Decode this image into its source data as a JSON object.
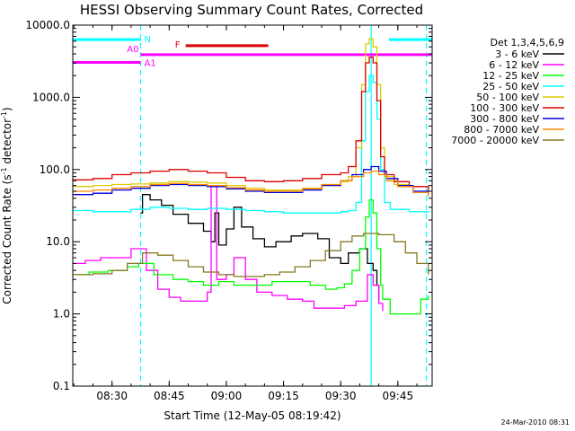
{
  "chart_data": {
    "type": "line",
    "title": "HESSI Observing Summary Count Rates, Corrected",
    "xlabel": "Start Time (12-May-05 08:19:42)",
    "ylabel": "Corrected Count Rate (s⁻¹ detector⁻¹)",
    "ylabel_main": "Corrected Count Rate (s",
    "ylabel_sup1": "-1",
    "ylabel_mid": " detector",
    "ylabel_sup2": "-1",
    "ylabel_end": ")",
    "yscale": "log",
    "ylim": [
      0.1,
      10000
    ],
    "xlim": [
      "08:19:42",
      "09:54:00"
    ],
    "x_ticks": [
      "08:30",
      "08:45",
      "09:00",
      "09:15",
      "09:30",
      "09:45"
    ],
    "y_ticks": [
      "0.1",
      "1.0",
      "10.0",
      "100.0",
      "1000.0",
      "10000.0"
    ],
    "legend_header": "Det 1,3,4,5,6,9",
    "legend_placement": "right",
    "footer": "24-Mar-2010 08:31",
    "flag_bars": [
      {
        "label": "N",
        "color": "#00ffff",
        "level": 6300,
        "segments": [
          [
            "08:19:42",
            "08:37:30"
          ],
          [
            "09:42:40",
            "09:54:00"
          ]
        ]
      },
      {
        "label": "F",
        "color": "#dd0000",
        "level": 5200,
        "segments": [
          [
            "08:49:20",
            "09:11:00"
          ]
        ]
      },
      {
        "label": "A0",
        "color": "#ff00ff",
        "level": 3900,
        "segments": [
          [
            "08:37:30",
            "09:54:00"
          ]
        ]
      },
      {
        "label": "A1",
        "color": "#ff00ff",
        "level": 3050,
        "segments": [
          [
            "08:19:42",
            "08:37:30"
          ]
        ]
      }
    ],
    "vertical_markers": [
      {
        "time": "08:37:30",
        "color": "#00ffff",
        "style": "dashed"
      },
      {
        "time": "09:38:00",
        "color": "#00ffff",
        "style": "solid"
      },
      {
        "time": "09:52:30",
        "color": "#00ffff",
        "style": "dashed"
      }
    ],
    "series": [
      {
        "name": "3 - 6 keV",
        "color": "#000000",
        "points": [
          [
            "08:37:30",
            25
          ],
          [
            "08:38:00",
            45
          ],
          [
            "08:40:00",
            38
          ],
          [
            "08:43:00",
            32
          ],
          [
            "08:46:00",
            24
          ],
          [
            "08:50:00",
            18
          ],
          [
            "08:54:00",
            14
          ],
          [
            "08:56:00",
            10
          ],
          [
            "08:57:00",
            25
          ],
          [
            "08:58:00",
            9
          ],
          [
            "09:00:00",
            15
          ],
          [
            "09:02:00",
            30
          ],
          [
            "09:04:00",
            16
          ],
          [
            "09:07:00",
            11
          ],
          [
            "09:10:00",
            8.5
          ],
          [
            "09:13:00",
            10
          ],
          [
            "09:17:00",
            12
          ],
          [
            "09:20:00",
            13
          ],
          [
            "09:24:00",
            11
          ],
          [
            "09:27:00",
            6
          ],
          [
            "09:30:00",
            5
          ],
          [
            "09:32:00",
            7
          ],
          [
            "09:35:00",
            8
          ],
          [
            "09:37:00",
            5
          ],
          [
            "09:38:30",
            4
          ],
          [
            "09:39:30",
            2.5
          ],
          [
            "09:40:00",
            1.5
          ]
        ]
      },
      {
        "name": "6 - 12 keV",
        "color": "#ff00ff",
        "points": [
          [
            "08:19:42",
            5
          ],
          [
            "08:23:00",
            5.5
          ],
          [
            "08:27:00",
            6
          ],
          [
            "08:32:00",
            6
          ],
          [
            "08:35:00",
            8
          ],
          [
            "08:37:00",
            8
          ],
          [
            "08:39:00",
            4
          ],
          [
            "08:42:00",
            2.2
          ],
          [
            "08:45:00",
            1.7
          ],
          [
            "08:48:00",
            1.5
          ],
          [
            "08:52:00",
            1.5
          ],
          [
            "08:55:00",
            2
          ],
          [
            "08:56:00",
            60
          ],
          [
            "08:57:30",
            3
          ],
          [
            "09:00:00",
            3.5
          ],
          [
            "09:02:00",
            6
          ],
          [
            "09:05:00",
            3
          ],
          [
            "09:08:00",
            2
          ],
          [
            "09:12:00",
            1.8
          ],
          [
            "09:16:00",
            1.6
          ],
          [
            "09:20:00",
            1.5
          ],
          [
            "09:23:00",
            1.2
          ],
          [
            "09:26:00",
            1.2
          ],
          [
            "09:29:00",
            1.2
          ],
          [
            "09:31:00",
            1.3
          ],
          [
            "09:34:00",
            1.5
          ],
          [
            "09:37:00",
            3.5
          ],
          [
            "09:38:30",
            2.5
          ],
          [
            "09:40:00",
            1.4
          ],
          [
            "09:41:00",
            1.1
          ]
        ]
      },
      {
        "name": "12 - 25 keV",
        "color": "#00ff00",
        "points": [
          [
            "08:19:42",
            3.5
          ],
          [
            "08:24:00",
            3.8
          ],
          [
            "08:29:00",
            4
          ],
          [
            "08:34:00",
            4.5
          ],
          [
            "08:37:00",
            5
          ],
          [
            "08:41:00",
            3.5
          ],
          [
            "08:46:00",
            3
          ],
          [
            "08:50:00",
            2.8
          ],
          [
            "08:54:00",
            2.5
          ],
          [
            "08:58:00",
            2.8
          ],
          [
            "09:02:00",
            2.5
          ],
          [
            "09:07:00",
            2.5
          ],
          [
            "09:12:00",
            2.8
          ],
          [
            "09:17:00",
            2.8
          ],
          [
            "09:22:00",
            2.5
          ],
          [
            "09:26:00",
            2.2
          ],
          [
            "09:29:00",
            2.3
          ],
          [
            "09:31:00",
            2.6
          ],
          [
            "09:33:00",
            4
          ],
          [
            "09:35:00",
            8
          ],
          [
            "09:36:30",
            22
          ],
          [
            "09:37:30",
            38
          ],
          [
            "09:38:30",
            25
          ],
          [
            "09:39:30",
            8
          ],
          [
            "09:40:30",
            2.5
          ],
          [
            "09:41:00",
            1.6
          ],
          [
            "09:43:00",
            1
          ],
          [
            "09:48:00",
            1
          ],
          [
            "09:51:00",
            1.6
          ],
          [
            "09:53:00",
            1.8
          ]
        ]
      },
      {
        "name": "25 - 50 keV",
        "color": "#00ffff",
        "points": [
          [
            "08:19:42",
            27
          ],
          [
            "08:25:00",
            26
          ],
          [
            "08:30:00",
            26
          ],
          [
            "08:35:00",
            28
          ],
          [
            "08:40:00",
            30
          ],
          [
            "08:45:00",
            29
          ],
          [
            "08:50:00",
            28
          ],
          [
            "08:55:00",
            29
          ],
          [
            "09:00:00",
            28
          ],
          [
            "09:05:00",
            27
          ],
          [
            "09:10:00",
            26
          ],
          [
            "09:15:00",
            25
          ],
          [
            "09:20:00",
            25
          ],
          [
            "09:25:00",
            25
          ],
          [
            "09:30:00",
            26
          ],
          [
            "09:32:00",
            27
          ],
          [
            "09:34:00",
            35
          ],
          [
            "09:35:30",
            250
          ],
          [
            "09:36:30",
            1200
          ],
          [
            "09:37:30",
            2000
          ],
          [
            "09:38:30",
            1600
          ],
          [
            "09:39:30",
            500
          ],
          [
            "09:40:30",
            100
          ],
          [
            "09:41:30",
            35
          ],
          [
            "09:43:00",
            28
          ],
          [
            "09:48:00",
            26
          ],
          [
            "09:53:00",
            25
          ]
        ]
      },
      {
        "name": "50 - 100 keV",
        "color": "#ddcc00",
        "points": [
          [
            "08:19:42",
            58
          ],
          [
            "08:25:00",
            60
          ],
          [
            "08:30:00",
            62
          ],
          [
            "08:35:00",
            63
          ],
          [
            "08:40:00",
            65
          ],
          [
            "08:45:00",
            68
          ],
          [
            "08:50:00",
            67
          ],
          [
            "08:55:00",
            65
          ],
          [
            "09:00:00",
            60
          ],
          [
            "09:05:00",
            55
          ],
          [
            "09:10:00",
            52
          ],
          [
            "09:15:00",
            52
          ],
          [
            "09:20:00",
            55
          ],
          [
            "09:25:00",
            60
          ],
          [
            "09:30:00",
            68
          ],
          [
            "09:32:00",
            80
          ],
          [
            "09:34:00",
            200
          ],
          [
            "09:35:30",
            1500
          ],
          [
            "09:36:30",
            5500
          ],
          [
            "09:37:30",
            6500
          ],
          [
            "09:38:30",
            5000
          ],
          [
            "09:39:30",
            1500
          ],
          [
            "09:40:30",
            200
          ],
          [
            "09:41:30",
            80
          ],
          [
            "09:44:00",
            62
          ],
          [
            "09:48:00",
            58
          ],
          [
            "09:53:00",
            55
          ]
        ]
      },
      {
        "name": "100 - 300 keV",
        "color": "#dd0000",
        "points": [
          [
            "08:19:42",
            72
          ],
          [
            "08:25:00",
            75
          ],
          [
            "08:30:00",
            85
          ],
          [
            "08:35:00",
            90
          ],
          [
            "08:40:00",
            95
          ],
          [
            "08:45:00",
            100
          ],
          [
            "08:50:00",
            95
          ],
          [
            "08:55:00",
            90
          ],
          [
            "09:00:00",
            78
          ],
          [
            "09:05:00",
            70
          ],
          [
            "09:10:00",
            68
          ],
          [
            "09:15:00",
            70
          ],
          [
            "09:20:00",
            75
          ],
          [
            "09:25:00",
            85
          ],
          [
            "09:30:00",
            90
          ],
          [
            "09:32:00",
            110
          ],
          [
            "09:34:00",
            250
          ],
          [
            "09:35:30",
            1200
          ],
          [
            "09:36:30",
            3000
          ],
          [
            "09:37:30",
            3600
          ],
          [
            "09:38:30",
            3000
          ],
          [
            "09:39:30",
            900
          ],
          [
            "09:40:30",
            150
          ],
          [
            "09:41:30",
            85
          ],
          [
            "09:44:00",
            68
          ],
          [
            "09:48:00",
            58
          ],
          [
            "09:53:00",
            48
          ]
        ]
      },
      {
        "name": "300 - 800 keV",
        "color": "#0000dd",
        "points": [
          [
            "08:19:42",
            45
          ],
          [
            "08:25:00",
            47
          ],
          [
            "08:30:00",
            52
          ],
          [
            "08:35:00",
            55
          ],
          [
            "08:40:00",
            60
          ],
          [
            "08:45:00",
            62
          ],
          [
            "08:50:00",
            60
          ],
          [
            "08:55:00",
            58
          ],
          [
            "09:00:00",
            54
          ],
          [
            "09:05:00",
            50
          ],
          [
            "09:10:00",
            48
          ],
          [
            "09:15:00",
            48
          ],
          [
            "09:20:00",
            52
          ],
          [
            "09:25:00",
            60
          ],
          [
            "09:30:00",
            70
          ],
          [
            "09:33:00",
            85
          ],
          [
            "09:36:00",
            100
          ],
          [
            "09:38:00",
            110
          ],
          [
            "09:40:00",
            95
          ],
          [
            "09:42:00",
            75
          ],
          [
            "09:45:00",
            60
          ],
          [
            "09:49:00",
            50
          ],
          [
            "09:53:00",
            45
          ]
        ]
      },
      {
        "name": "800 - 7000 keV",
        "color": "#ff8800",
        "points": [
          [
            "08:19:42",
            50
          ],
          [
            "08:25:00",
            52
          ],
          [
            "08:30:00",
            55
          ],
          [
            "08:35:00",
            58
          ],
          [
            "08:40:00",
            62
          ],
          [
            "08:45:00",
            64
          ],
          [
            "08:50:00",
            62
          ],
          [
            "08:55:00",
            60
          ],
          [
            "09:00:00",
            56
          ],
          [
            "09:05:00",
            52
          ],
          [
            "09:10:00",
            50
          ],
          [
            "09:15:00",
            50
          ],
          [
            "09:20:00",
            54
          ],
          [
            "09:25:00",
            62
          ],
          [
            "09:30:00",
            70
          ],
          [
            "09:33:00",
            80
          ],
          [
            "09:36:00",
            90
          ],
          [
            "09:38:00",
            95
          ],
          [
            "09:40:00",
            85
          ],
          [
            "09:42:00",
            70
          ],
          [
            "09:45:00",
            58
          ],
          [
            "09:49:00",
            48
          ],
          [
            "09:53:00",
            42
          ]
        ]
      },
      {
        "name": "7000 - 20000 keV",
        "color": "#887722",
        "points": [
          [
            "08:19:42",
            3.5
          ],
          [
            "08:25:00",
            3.6
          ],
          [
            "08:30:00",
            4
          ],
          [
            "08:34:00",
            5
          ],
          [
            "08:38:00",
            7
          ],
          [
            "08:42:00",
            6.5
          ],
          [
            "08:46:00",
            5.5
          ],
          [
            "08:50:00",
            4.5
          ],
          [
            "08:54:00",
            3.8
          ],
          [
            "08:58:00",
            3.5
          ],
          [
            "09:02:00",
            3.3
          ],
          [
            "09:06:00",
            3.3
          ],
          [
            "09:10:00",
            3.5
          ],
          [
            "09:14:00",
            3.8
          ],
          [
            "09:18:00",
            4.5
          ],
          [
            "09:22:00",
            5.5
          ],
          [
            "09:26:00",
            7.5
          ],
          [
            "09:30:00",
            10
          ],
          [
            "09:33:00",
            12
          ],
          [
            "09:36:00",
            13
          ],
          [
            "09:40:00",
            12.5
          ],
          [
            "09:44:00",
            10
          ],
          [
            "09:47:00",
            7
          ],
          [
            "09:50:00",
            5
          ],
          [
            "09:53:00",
            3.5
          ]
        ]
      }
    ]
  }
}
